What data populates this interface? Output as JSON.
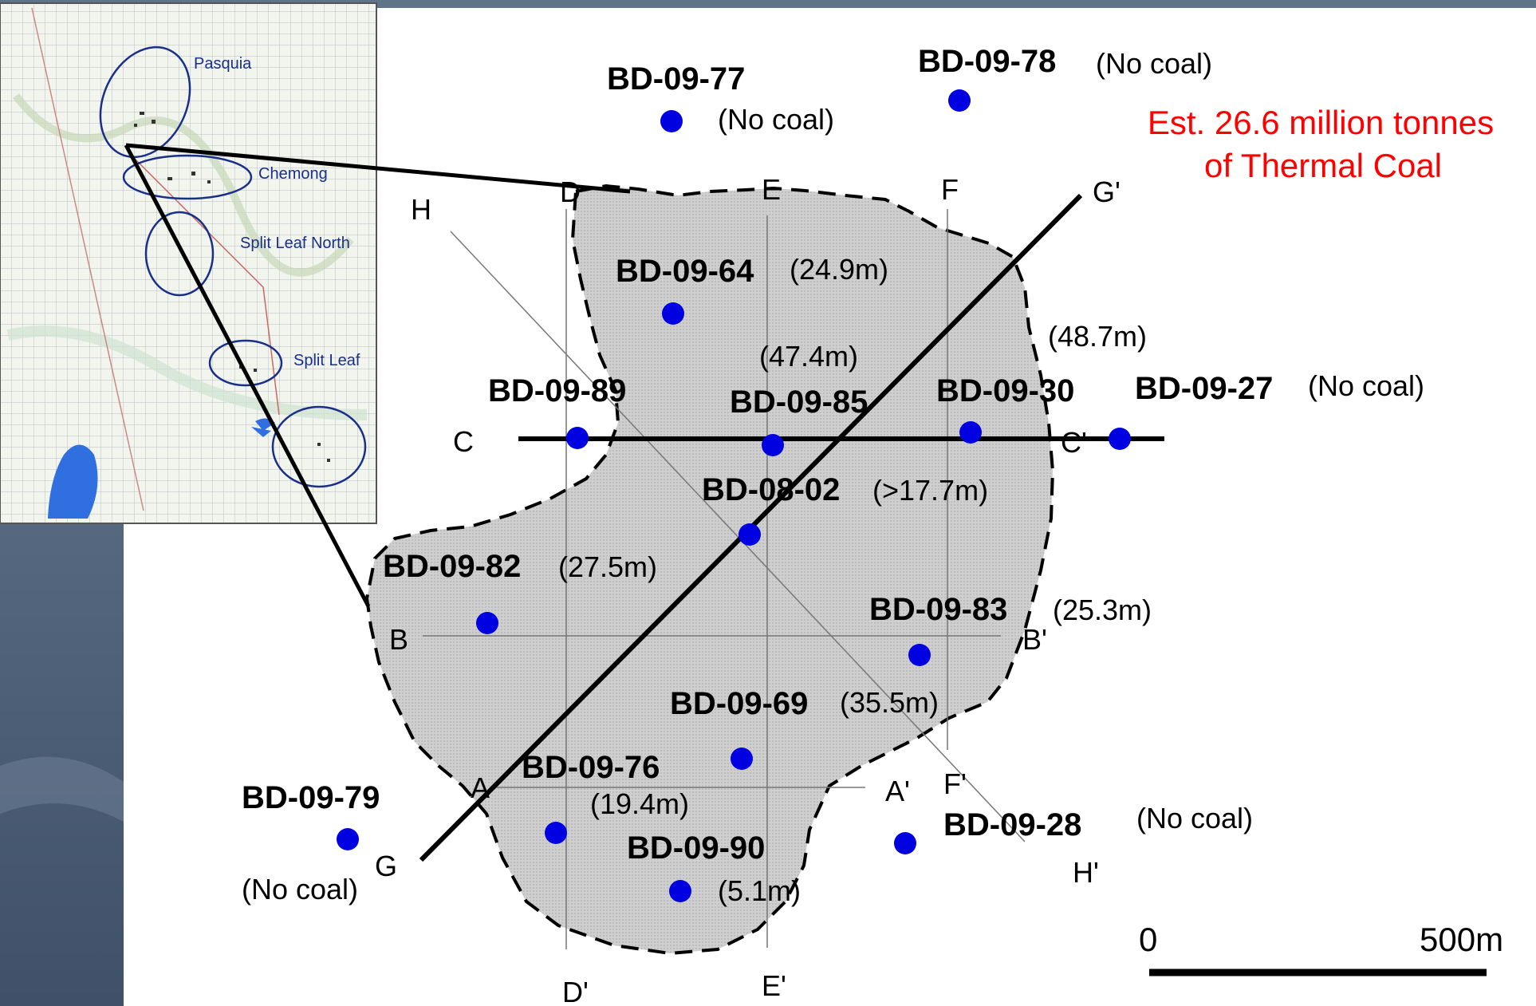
{
  "estimate": [
    "Est. 26.6 million tonnes",
    "of Thermal Coal"
  ],
  "scale": {
    "start": "0",
    "end": "500m"
  },
  "inset_labels": [
    "Pasquia",
    "Chemong",
    "Split Leaf North",
    "Split Leaf"
  ],
  "boreholes": [
    {
      "id": "BD-09-77",
      "note": "(No coal)"
    },
    {
      "id": "BD-09-78",
      "note": "(No coal)"
    },
    {
      "id": "BD-09-64",
      "note": "(24.9m)"
    },
    {
      "id": "BD-09-89",
      "note": ""
    },
    {
      "id": "BD-09-85",
      "note": "(47.4m)"
    },
    {
      "id": "BD-09-30",
      "note": "(48.7m)"
    },
    {
      "id": "BD-09-27",
      "note": "(No coal)"
    },
    {
      "id": "BD-08-02",
      "note": "(>17.7m)"
    },
    {
      "id": "BD-09-82",
      "note": "(27.5m)"
    },
    {
      "id": "BD-09-83",
      "note": "(25.3m)"
    },
    {
      "id": "BD-09-69",
      "note": "(35.5m)"
    },
    {
      "id": "BD-09-76",
      "note": "(19.4m)"
    },
    {
      "id": "BD-09-79",
      "note": "(No coal)"
    },
    {
      "id": "BD-09-90",
      "note": "(5.1m)"
    },
    {
      "id": "BD-09-28",
      "note": "(No coal)"
    }
  ],
  "section_labels": {
    "A": "A",
    "A2": "A'",
    "B": "B",
    "B2": "B'",
    "C": "C",
    "C2": "C'",
    "D": "D",
    "D2": "D'",
    "E": "E",
    "E2": "E'",
    "F": "F",
    "F2": "F'",
    "G": "G",
    "G2": "G'",
    "H": "H",
    "H2": "H'"
  },
  "colors": {
    "background_band": "#4a5d75",
    "borehole": "#0000e0",
    "deposit_fill": "#d3d3d3",
    "estimate_text": "#ff0000",
    "inset_water": "#2f6fe0"
  }
}
